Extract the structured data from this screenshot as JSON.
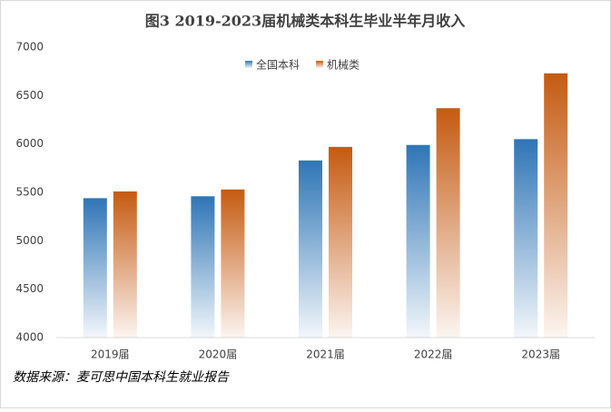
{
  "chart_data": {
    "type": "bar",
    "title": "图3 2019-2023届机械类本科生毕业半年月收入",
    "categories": [
      "2019届",
      "2020届",
      "2021届",
      "2022届",
      "2023届"
    ],
    "series": [
      {
        "name": "全国本科",
        "color": "#2e75b6",
        "values": [
          5440,
          5460,
          5830,
          5990,
          6050
        ]
      },
      {
        "name": "机械类",
        "color": "#c55a11",
        "values": [
          5510,
          5530,
          5970,
          6370,
          6730
        ]
      }
    ],
    "ylim": [
      4000,
      7000
    ],
    "yticks": [
      4000,
      4500,
      5000,
      5500,
      6000,
      6500,
      7000
    ],
    "grid": false,
    "legend": "top",
    "source": "数据来源：麦可思中国本科生就业报告"
  }
}
